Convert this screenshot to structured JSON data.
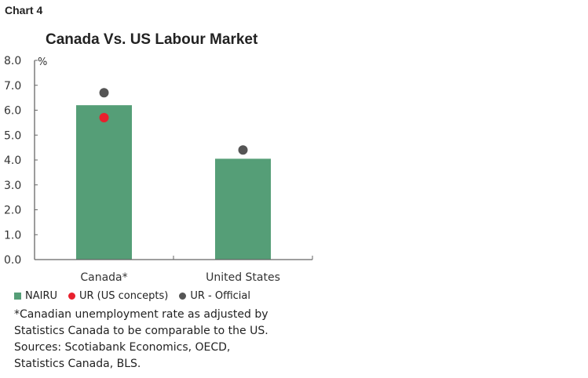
{
  "header": {
    "chart_label": "Chart 4"
  },
  "chart_data": {
    "type": "bar",
    "title": "Canada Vs. US Labour Market",
    "ylabel": "%",
    "ylim": [
      0,
      8
    ],
    "yticks": [
      "0.0",
      "1.0",
      "2.0",
      "3.0",
      "4.0",
      "5.0",
      "6.0",
      "7.0",
      "8.0"
    ],
    "categories": [
      "Canada*",
      "United States"
    ],
    "series": [
      {
        "name": "NAIRU",
        "kind": "bar",
        "color": "#559e77",
        "values": [
          6.2,
          4.05
        ]
      },
      {
        "name": "UR (US concepts)",
        "kind": "dot",
        "color": "#e8202d",
        "values": [
          5.7,
          null
        ]
      },
      {
        "name": "UR - Official",
        "kind": "dot",
        "color": "#555555",
        "values": [
          6.7,
          4.4
        ]
      }
    ]
  },
  "footnotes": [
    "*Canadian unemployment rate as adjusted by",
    "Statistics Canada to be comparable to the US.",
    "Sources: Scotiabank Economics, OECD,",
    "Statistics Canada, BLS."
  ]
}
